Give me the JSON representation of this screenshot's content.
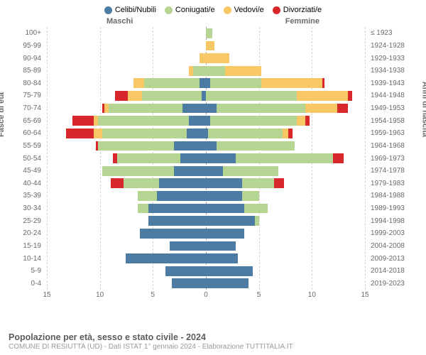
{
  "legend": {
    "items": [
      {
        "label": "Celibi/Nubili",
        "color": "#4c7ba4"
      },
      {
        "label": "Coniugati/e",
        "color": "#b6d492"
      },
      {
        "label": "Vedovi/e",
        "color": "#f8c766"
      },
      {
        "label": "Divorziati/e",
        "color": "#d8282c"
      }
    ]
  },
  "columns": {
    "left": "Maschi",
    "right": "Femmine"
  },
  "axes": {
    "left_title": "Fasce di età",
    "right_title": "Anni di nascita",
    "x_ticks": [
      15,
      10,
      5,
      0,
      5,
      10,
      15
    ],
    "x_max": 15
  },
  "age_labels": [
    "100+",
    "95-99",
    "90-94",
    "85-89",
    "80-84",
    "75-79",
    "70-74",
    "65-69",
    "60-64",
    "55-59",
    "50-54",
    "45-49",
    "40-44",
    "35-39",
    "30-34",
    "25-29",
    "20-24",
    "15-19",
    "10-14",
    "5-9",
    "0-4"
  ],
  "birth_labels": [
    "≤ 1923",
    "1924-1928",
    "1929-1933",
    "1934-1938",
    "1939-1943",
    "1944-1948",
    "1949-1953",
    "1954-1958",
    "1959-1963",
    "1964-1968",
    "1969-1973",
    "1974-1978",
    "1979-1983",
    "1984-1988",
    "1989-1993",
    "1994-1998",
    "1999-2003",
    "2004-2008",
    "2009-2013",
    "2014-2018",
    "2019-2023"
  ],
  "series_colors": {
    "single": "#4c7ba4",
    "married": "#b6d492",
    "widowed": "#f8c766",
    "divorced": "#d8282c"
  },
  "background_color": "#ffffff",
  "grid_color": "#d5d5d5",
  "center_line_color": "#9e9e9e",
  "text_color": "#6a6a6a",
  "rows": [
    {
      "m": {
        "single": 0,
        "married": 0,
        "widowed": 0,
        "divorced": 0
      },
      "f": {
        "single": 0,
        "married": 0.6,
        "widowed": 0,
        "divorced": 0
      }
    },
    {
      "m": {
        "single": 0,
        "married": 0,
        "widowed": 0,
        "divorced": 0
      },
      "f": {
        "single": 0,
        "married": 0,
        "widowed": 0.8,
        "divorced": 0
      }
    },
    {
      "m": {
        "single": 0,
        "married": 0,
        "widowed": 0.6,
        "divorced": 0
      },
      "f": {
        "single": 0,
        "married": 0,
        "widowed": 2.2,
        "divorced": 0
      }
    },
    {
      "m": {
        "single": 0,
        "married": 1.2,
        "widowed": 0.4,
        "divorced": 0
      },
      "f": {
        "single": 0,
        "married": 1.8,
        "widowed": 3.4,
        "divorced": 0
      }
    },
    {
      "m": {
        "single": 0.6,
        "married": 5.2,
        "widowed": 1.0,
        "divorced": 0
      },
      "f": {
        "single": 0.4,
        "married": 4.8,
        "widowed": 5.8,
        "divorced": 0.2
      }
    },
    {
      "m": {
        "single": 0.4,
        "married": 5.6,
        "widowed": 1.4,
        "divorced": 1.2
      },
      "f": {
        "single": 0,
        "married": 8.6,
        "widowed": 4.8,
        "divorced": 0.4
      }
    },
    {
      "m": {
        "single": 2.2,
        "married": 7.0,
        "widowed": 0.4,
        "divorced": 0.2
      },
      "f": {
        "single": 1.0,
        "married": 8.4,
        "widowed": 3.0,
        "divorced": 1.0
      }
    },
    {
      "m": {
        "single": 1.6,
        "married": 8.6,
        "widowed": 0.4,
        "divorced": 2.0
      },
      "f": {
        "single": 0.4,
        "married": 8.2,
        "widowed": 0.8,
        "divorced": 0.4
      }
    },
    {
      "m": {
        "single": 1.8,
        "married": 8.0,
        "widowed": 0.8,
        "divorced": 2.6
      },
      "f": {
        "single": 0.2,
        "married": 7.0,
        "widowed": 0.6,
        "divorced": 0.4
      }
    },
    {
      "m": {
        "single": 3.0,
        "married": 7.2,
        "widowed": 0,
        "divorced": 0.2
      },
      "f": {
        "single": 1.0,
        "married": 7.4,
        "widowed": 0,
        "divorced": 0
      }
    },
    {
      "m": {
        "single": 2.4,
        "married": 6.0,
        "widowed": 0,
        "divorced": 0.4
      },
      "f": {
        "single": 2.8,
        "married": 9.2,
        "widowed": 0,
        "divorced": 1.0
      }
    },
    {
      "m": {
        "single": 3.0,
        "married": 6.8,
        "widowed": 0,
        "divorced": 0
      },
      "f": {
        "single": 1.6,
        "married": 5.2,
        "widowed": 0,
        "divorced": 0
      }
    },
    {
      "m": {
        "single": 4.4,
        "married": 3.4,
        "widowed": 0,
        "divorced": 1.2
      },
      "f": {
        "single": 3.4,
        "married": 3.0,
        "widowed": 0,
        "divorced": 1.0
      }
    },
    {
      "m": {
        "single": 4.6,
        "married": 1.8,
        "widowed": 0,
        "divorced": 0
      },
      "f": {
        "single": 3.4,
        "married": 1.6,
        "widowed": 0,
        "divorced": 0
      }
    },
    {
      "m": {
        "single": 5.4,
        "married": 1.0,
        "widowed": 0,
        "divorced": 0
      },
      "f": {
        "single": 3.6,
        "married": 2.2,
        "widowed": 0,
        "divorced": 0
      }
    },
    {
      "m": {
        "single": 5.4,
        "married": 0,
        "widowed": 0,
        "divorced": 0
      },
      "f": {
        "single": 4.6,
        "married": 0.4,
        "widowed": 0,
        "divorced": 0
      }
    },
    {
      "m": {
        "single": 6.2,
        "married": 0,
        "widowed": 0,
        "divorced": 0
      },
      "f": {
        "single": 3.6,
        "married": 0,
        "widowed": 0,
        "divorced": 0
      }
    },
    {
      "m": {
        "single": 3.4,
        "married": 0,
        "widowed": 0,
        "divorced": 0
      },
      "f": {
        "single": 2.8,
        "married": 0,
        "widowed": 0,
        "divorced": 0
      }
    },
    {
      "m": {
        "single": 7.6,
        "married": 0,
        "widowed": 0,
        "divorced": 0
      },
      "f": {
        "single": 3.0,
        "married": 0,
        "widowed": 0,
        "divorced": 0
      }
    },
    {
      "m": {
        "single": 3.8,
        "married": 0,
        "widowed": 0,
        "divorced": 0
      },
      "f": {
        "single": 4.4,
        "married": 0,
        "widowed": 0,
        "divorced": 0
      }
    },
    {
      "m": {
        "single": 3.2,
        "married": 0,
        "widowed": 0,
        "divorced": 0
      },
      "f": {
        "single": 4.0,
        "married": 0,
        "widowed": 0,
        "divorced": 0
      }
    }
  ],
  "footer": {
    "title": "Popolazione per età, sesso e stato civile - 2024",
    "subtitle": "COMUNE DI RESIUTTA (UD) - Dati ISTAT 1° gennaio 2024 - Elaborazione TUTTITALIA.IT"
  }
}
